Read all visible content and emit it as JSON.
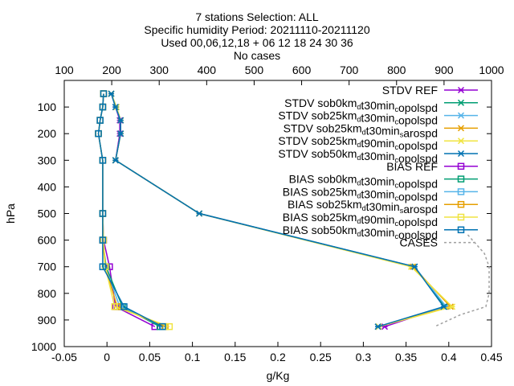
{
  "chart_data": {
    "type": "line",
    "title_lines": [
      "7 stations Selection: ALL",
      "Specific humidity  Period: 20211110-20211120",
      "Used 00,06,12,18 + 06 12 18 24 30 36",
      "No cases"
    ],
    "xlabel": "g/Kg",
    "ylabel": "hPa",
    "xlim": [
      -0.05,
      0.45
    ],
    "ylim": [
      1000,
      0
    ],
    "x_ticks": [
      "-0.05",
      "0",
      "0.05",
      "0.1",
      "0.15",
      "0.2",
      "0.25",
      "0.3",
      "0.35",
      "0.4",
      "0.45"
    ],
    "x_tick_values": [
      -0.05,
      0,
      0.05,
      0.1,
      0.15,
      0.2,
      0.25,
      0.3,
      0.35,
      0.4,
      0.45
    ],
    "y_ticks": [
      "100",
      "200",
      "300",
      "400",
      "500",
      "600",
      "700",
      "800",
      "900",
      "1000"
    ],
    "y_tick_values": [
      100,
      200,
      300,
      400,
      500,
      600,
      700,
      800,
      900,
      1000
    ],
    "x2lim": [
      100,
      1000
    ],
    "x2_ticks": [
      "100",
      "200",
      "300",
      "400",
      "500",
      "600",
      "700",
      "800",
      "900",
      "1000"
    ],
    "x2_tick_values": [
      100,
      200,
      300,
      400,
      500,
      600,
      700,
      800,
      900,
      1000
    ],
    "grid": false,
    "legend_position": "top-right",
    "series": [
      {
        "name": "STDV REF",
        "color": "#9400d3",
        "marker": "star",
        "points": [
          [
            0.005,
            50
          ],
          [
            0.01,
            100
          ],
          [
            0.015,
            150
          ],
          [
            0.015,
            200
          ],
          [
            0.01,
            300
          ],
          [
            0.108,
            500
          ],
          [
            0.36,
            700
          ],
          [
            0.395,
            850
          ],
          [
            0.325,
            925
          ]
        ]
      },
      {
        "name": "STDV sob0km_dt30min_copolspd",
        "color": "#009e73",
        "marker": "star",
        "points": [
          [
            0.005,
            50
          ],
          [
            0.011,
            100
          ],
          [
            0.016,
            150
          ],
          [
            0.016,
            200
          ],
          [
            0.01,
            300
          ],
          [
            0.108,
            500
          ],
          [
            0.36,
            700
          ],
          [
            0.395,
            850
          ],
          [
            0.318,
            925
          ]
        ]
      },
      {
        "name": "STDV sob25km_dt30min_copolspd",
        "color": "#56b4e9",
        "marker": "star",
        "points": [
          [
            0.005,
            50
          ],
          [
            0.01,
            100
          ],
          [
            0.016,
            150
          ],
          [
            0.016,
            200
          ],
          [
            0.01,
            300
          ],
          [
            0.108,
            500
          ],
          [
            0.36,
            700
          ],
          [
            0.397,
            850
          ],
          [
            0.318,
            925
          ]
        ]
      },
      {
        "name": "STDV sob25km_dt30min_sarospd",
        "color": "#e69f00",
        "marker": "star",
        "points": [
          [
            0.005,
            50
          ],
          [
            0.011,
            100
          ],
          [
            0.016,
            150
          ],
          [
            0.016,
            200
          ],
          [
            0.01,
            300
          ],
          [
            0.108,
            500
          ],
          [
            0.358,
            700
          ],
          [
            0.402,
            850
          ],
          [
            0.318,
            925
          ]
        ]
      },
      {
        "name": "STDV sob25km_dt90min_copolspd",
        "color": "#f0e442",
        "marker": "star",
        "points": [
          [
            0.005,
            50
          ],
          [
            0.011,
            100
          ],
          [
            0.016,
            150
          ],
          [
            0.016,
            200
          ],
          [
            0.01,
            300
          ],
          [
            0.108,
            500
          ],
          [
            0.356,
            700
          ],
          [
            0.404,
            850
          ],
          [
            0.318,
            925
          ]
        ]
      },
      {
        "name": "STDV sob50km_dt30min_copolspd",
        "color": "#0072b2",
        "marker": "star",
        "points": [
          [
            0.005,
            50
          ],
          [
            0.01,
            100
          ],
          [
            0.016,
            150
          ],
          [
            0.016,
            200
          ],
          [
            0.01,
            300
          ],
          [
            0.108,
            500
          ],
          [
            0.36,
            700
          ],
          [
            0.394,
            850
          ],
          [
            0.317,
            925
          ]
        ]
      },
      {
        "name": "BIAS REF",
        "color": "#9400d3",
        "marker": "square",
        "points": [
          [
            -0.004,
            50
          ],
          [
            -0.005,
            100
          ],
          [
            -0.008,
            150
          ],
          [
            -0.01,
            200
          ],
          [
            -0.005,
            300
          ],
          [
            -0.005,
            500
          ],
          [
            -0.004,
            600
          ],
          [
            0.003,
            700
          ],
          [
            0.01,
            850
          ],
          [
            0.056,
            925
          ]
        ]
      },
      {
        "name": "BIAS sob0km_dt30min_copolspd",
        "color": "#009e73",
        "marker": "square",
        "points": [
          [
            -0.004,
            50
          ],
          [
            -0.005,
            100
          ],
          [
            -0.008,
            150
          ],
          [
            -0.01,
            200
          ],
          [
            -0.005,
            300
          ],
          [
            -0.005,
            500
          ],
          [
            -0.005,
            600
          ],
          [
            -0.001,
            700
          ],
          [
            0.018,
            850
          ],
          [
            0.062,
            925
          ]
        ]
      },
      {
        "name": "BIAS sob25km_dt30min_copolspd",
        "color": "#56b4e9",
        "marker": "square",
        "points": [
          [
            -0.004,
            50
          ],
          [
            -0.005,
            100
          ],
          [
            -0.008,
            150
          ],
          [
            -0.01,
            200
          ],
          [
            -0.005,
            300
          ],
          [
            -0.005,
            500
          ],
          [
            -0.005,
            600
          ],
          [
            -0.002,
            700
          ],
          [
            0.015,
            850
          ],
          [
            0.066,
            925
          ]
        ]
      },
      {
        "name": "BIAS sob25km_dt30min_sarospd",
        "color": "#e69f00",
        "marker": "square",
        "points": [
          [
            -0.004,
            50
          ],
          [
            -0.005,
            100
          ],
          [
            -0.008,
            150
          ],
          [
            -0.01,
            200
          ],
          [
            -0.005,
            300
          ],
          [
            -0.005,
            500
          ],
          [
            -0.005,
            600
          ],
          [
            -0.002,
            700
          ],
          [
            0.012,
            850
          ],
          [
            0.068,
            925
          ]
        ]
      },
      {
        "name": "BIAS sob25km_dt90min_copolspd",
        "color": "#f0e442",
        "marker": "square",
        "points": [
          [
            -0.004,
            50
          ],
          [
            -0.005,
            100
          ],
          [
            -0.008,
            150
          ],
          [
            -0.01,
            200
          ],
          [
            -0.005,
            300
          ],
          [
            -0.005,
            500
          ],
          [
            -0.004,
            600
          ],
          [
            -0.002,
            700
          ],
          [
            0.009,
            850
          ],
          [
            0.073,
            925
          ]
        ]
      },
      {
        "name": "BIAS sob50km_dt30min_copolspd",
        "color": "#0072b2",
        "marker": "square",
        "points": [
          [
            -0.004,
            50
          ],
          [
            -0.005,
            100
          ],
          [
            -0.008,
            150
          ],
          [
            -0.01,
            200
          ],
          [
            -0.005,
            300
          ],
          [
            -0.005,
            500
          ],
          [
            -0.005,
            600
          ],
          [
            -0.005,
            700
          ],
          [
            0.02,
            850
          ],
          [
            0.065,
            925
          ]
        ]
      },
      {
        "name": "CASES",
        "color": "#a0a0a0",
        "marker": "none",
        "dashed": true,
        "axis": "x2",
        "points": [
          [
            950,
            580
          ],
          [
            985,
            650
          ],
          [
            995,
            700
          ],
          [
            995,
            800
          ],
          [
            988,
            850
          ],
          [
            935,
            880
          ],
          [
            880,
            925
          ]
        ]
      }
    ]
  }
}
